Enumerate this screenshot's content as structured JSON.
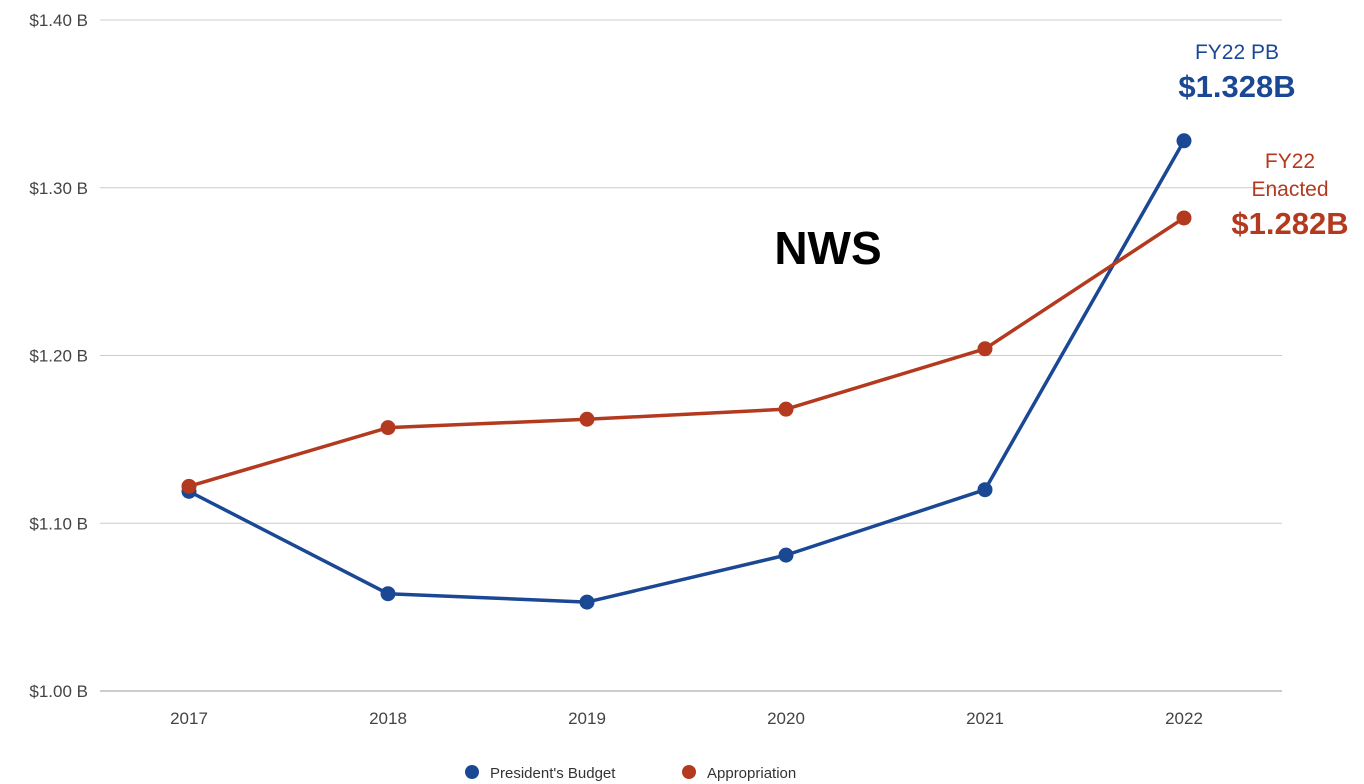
{
  "chart_data": {
    "type": "line",
    "title": "NWS",
    "categories": [
      "2017",
      "2018",
      "2019",
      "2020",
      "2021",
      "2022"
    ],
    "ylim": [
      1.0,
      1.4
    ],
    "yticks": [
      {
        "value": 1.0,
        "label": "$1.00 B"
      },
      {
        "value": 1.1,
        "label": "$1.10 B"
      },
      {
        "value": 1.2,
        "label": "$1.20 B"
      },
      {
        "value": 1.3,
        "label": "$1.30 B"
      },
      {
        "value": 1.4,
        "label": "$1.40 B"
      }
    ],
    "grid": true,
    "legend_position": "bottom",
    "series": [
      {
        "name": "President's Budget",
        "color": "#1a4894",
        "values": [
          1.119,
          1.058,
          1.053,
          1.081,
          1.12,
          1.328
        ]
      },
      {
        "name": "Appropriation",
        "color": "#b33a1f",
        "values": [
          1.122,
          1.157,
          1.162,
          1.168,
          1.204,
          1.282
        ]
      }
    ],
    "annotations": {
      "pb": {
        "line1": "FY22 PB",
        "value": "$1.328B",
        "color": "#1a4894"
      },
      "enacted": {
        "line1": "FY22",
        "line2": "Enacted",
        "value": "$1.282B",
        "color": "#b33a1f"
      }
    }
  }
}
